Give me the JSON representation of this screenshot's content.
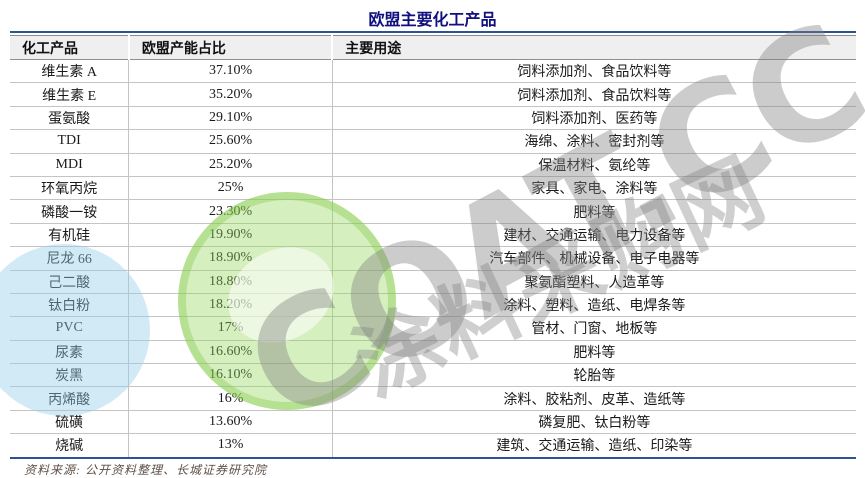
{
  "title": "欧盟主要化工产品",
  "table": {
    "headers": [
      "化工产品",
      "欧盟产能占比",
      "主要用途"
    ],
    "rows": [
      {
        "product": "维生素 A",
        "share": "37.10%",
        "uses": "饲料添加剂、食品饮料等"
      },
      {
        "product": "维生素 E",
        "share": "35.20%",
        "uses": "饲料添加剂、食品饮料等"
      },
      {
        "product": "蛋氨酸",
        "share": "29.10%",
        "uses": "饲料添加剂、医药等"
      },
      {
        "product": "TDI",
        "share": "25.60%",
        "uses": "海绵、涂料、密封剂等"
      },
      {
        "product": "MDI",
        "share": "25.20%",
        "uses": "保温材料、氨纶等"
      },
      {
        "product": "环氧丙烷",
        "share": "25%",
        "uses": "家具、家电、涂料等"
      },
      {
        "product": "磷酸一铵",
        "share": "23.30%",
        "uses": "肥料等"
      },
      {
        "product": "有机硅",
        "share": "19.90%",
        "uses": "建材、交通运输、电力设备等"
      },
      {
        "product": "尼龙 66",
        "share": "18.90%",
        "uses": "汽车部件、机械设备、电子电器等"
      },
      {
        "product": "己二酸",
        "share": "18.80%",
        "uses": "聚氨酯塑料、人造革等"
      },
      {
        "product": "钛白粉",
        "share": "18.20%",
        "uses": "涂料、塑料、造纸、电焊条等"
      },
      {
        "product": "PVC",
        "share": "17%",
        "uses": "管材、门窗、地板等"
      },
      {
        "product": "尿素",
        "share": "16.60%",
        "uses": "肥料等"
      },
      {
        "product": "炭黑",
        "share": "16.10%",
        "uses": "轮胎等"
      },
      {
        "product": "丙烯酸",
        "share": "16%",
        "uses": "涂料、胶粘剂、皮革、造纸等"
      },
      {
        "product": "硫磺",
        "share": "13.60%",
        "uses": "磷复肥、钛白粉等"
      },
      {
        "product": "烧碱",
        "share": "13%",
        "uses": "建筑、交通运输、造纸、印染等"
      }
    ]
  },
  "source": "资料来源: 公开资料整理、长城证券研究院",
  "watermark": {
    "text_en": "COAT.CC",
    "text_cn": "涂料采购网"
  },
  "colors": {
    "title_navy": "#10107e",
    "rule_navy": "#2e5395",
    "header_bg": "#efefef",
    "row_line": "#c4c4c4",
    "source_text": "#5f5047",
    "watermark_green": "#96d660",
    "watermark_blue": "#94cde8",
    "watermark_gray": "#808080"
  }
}
